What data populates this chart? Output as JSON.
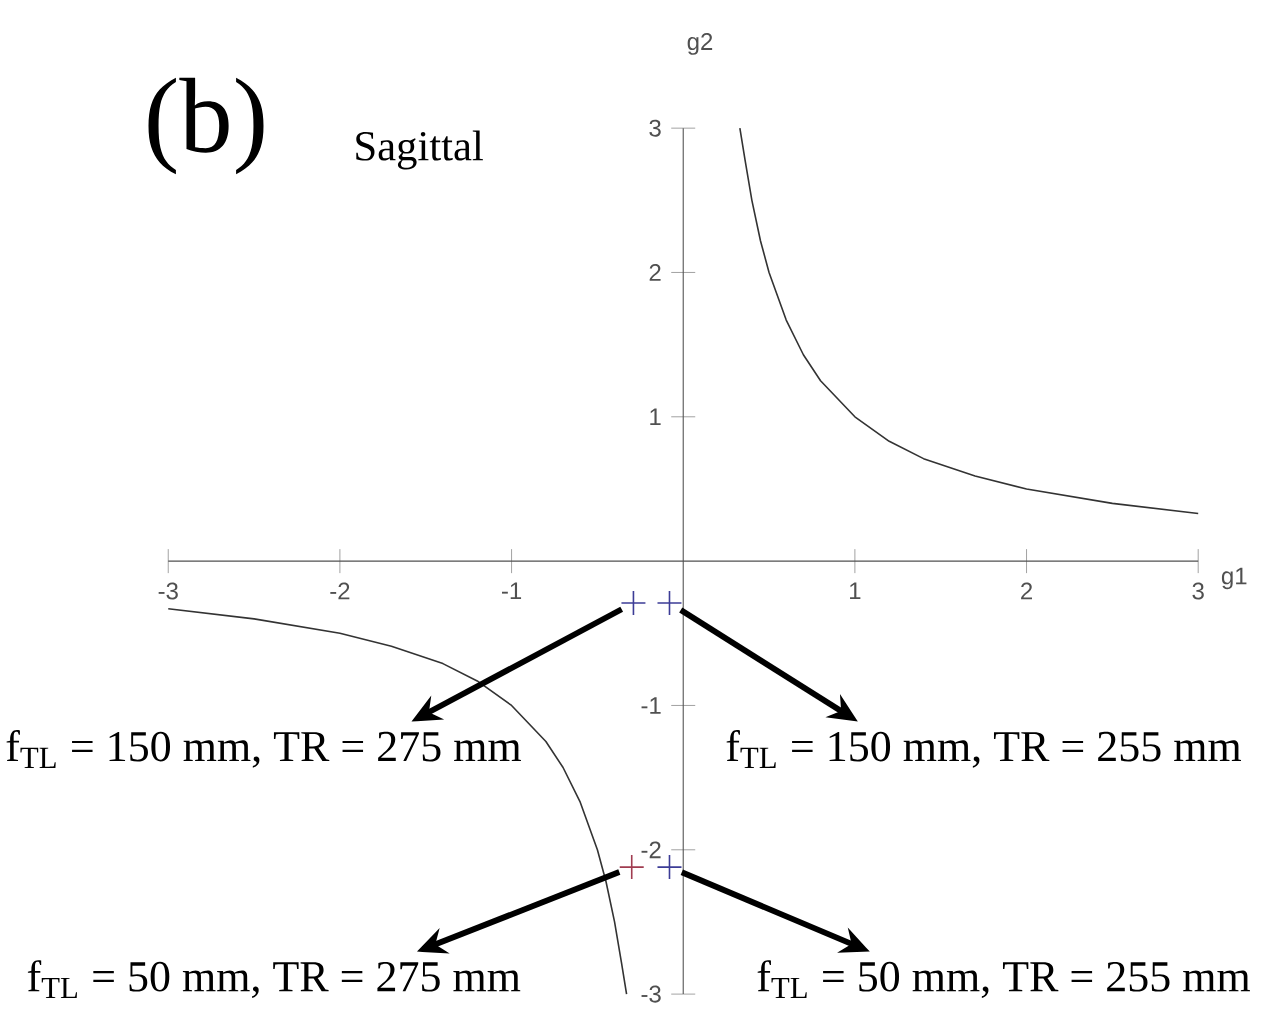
{
  "chart_data": {
    "type": "line",
    "title": "(b)",
    "subtitle": "Sagittal",
    "xlabel": "g1",
    "ylabel": "g2",
    "xlim": [
      -3,
      3
    ],
    "ylim": [
      -3,
      3
    ],
    "xticks": [
      -3,
      -2,
      -1,
      1,
      2,
      3
    ],
    "yticks": [
      -3,
      -2,
      -1,
      1,
      2,
      3
    ],
    "series": [
      {
        "color": "#333333",
        "x": [
          0.33,
          0.36,
          0.4,
          0.45,
          0.5,
          0.6,
          0.7,
          0.8,
          1,
          1.2,
          1.4,
          1.7,
          2,
          2.5,
          3
        ],
        "values": [
          3,
          2.78,
          2.5,
          2.22,
          2,
          1.67,
          1.43,
          1.25,
          1,
          0.83,
          0.71,
          0.59,
          0.5,
          0.4,
          0.33
        ]
      },
      {
        "color": "#333333",
        "x": [
          -3,
          -2.5,
          -2,
          -1.7,
          -1.4,
          -1.2,
          -1,
          -0.8,
          -0.7,
          -0.6,
          -0.5,
          -0.45,
          -0.4,
          -0.36,
          -0.33
        ],
        "values": [
          -0.33,
          -0.4,
          -0.5,
          -0.59,
          -0.71,
          -0.83,
          -1,
          -1.25,
          -1.43,
          -1.67,
          -2,
          -2.22,
          -2.5,
          -2.78,
          -3
        ]
      },
      {
        "type": "scatter",
        "marker": "cross",
        "x": [
          -0.29,
          -0.08,
          -0.3,
          -0.08
        ],
        "values": [
          -0.29,
          -0.29,
          -2.12,
          -2.12
        ],
        "colors": [
          "#3c3c96",
          "#3c3c96",
          "#a03c50",
          "#3c3c96"
        ]
      }
    ],
    "annotations": [
      {
        "text": "f$_{TL}$ = 150 mm, TR = 275 mm",
        "x": -0.29,
        "y": -0.29
      },
      {
        "text": "f$_{TL}$ = 150 mm, TR = 255 mm",
        "x": -0.08,
        "y": -0.29
      },
      {
        "text": "f$_{TL}$ = 50 mm, TR = 275 mm",
        "x": -0.3,
        "y": -2.12
      },
      {
        "text": "f$_{TL}$ = 50 mm, TR = 255 mm",
        "x": -0.08,
        "y": -2.12
      }
    ]
  }
}
